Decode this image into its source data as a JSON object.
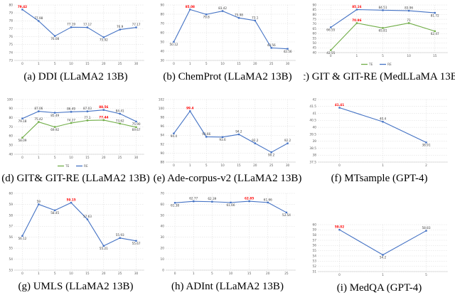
{
  "colors": {
    "line_blue": "#4472c4",
    "line_green": "#70ad47",
    "highlight_red": "#ff0000",
    "grid": "#d9d9d9",
    "axis": "#bfbfbf",
    "tick_text": "#595959",
    "label_text": "#3b3b3b"
  },
  "chart_data": [
    {
      "type": "line",
      "caption": "(a) DDI (LLaMA2 13B)",
      "x": [
        "0",
        "1",
        "5",
        "10",
        "15",
        "20",
        "25",
        "30"
      ],
      "ylim": [
        73,
        80
      ],
      "ystep": 1,
      "grid": true,
      "legend": null,
      "series": [
        {
          "color_key": "line_blue",
          "values": [
            79.42,
            77.98,
            76.08,
            77.19,
            77.17,
            75.92,
            76.9,
            77.17
          ],
          "labels": [
            "79.42",
            "77.98",
            "76.08",
            "77.19",
            "77.17",
            "75.92",
            "76.9",
            "77.17"
          ],
          "red_label_index": 0
        }
      ]
    },
    {
      "type": "line",
      "caption": "(b) ChemProt (LLaMA2 13B)",
      "x": [
        "0",
        "1",
        "5",
        "10",
        "15",
        "20",
        "25",
        "30"
      ],
      "ylim": [
        30,
        90
      ],
      "ystep": 10,
      "grid": true,
      "legend": null,
      "series": [
        {
          "color_key": "line_blue",
          "values": [
            50.12,
            85.08,
            79.8,
            83.42,
            75.98,
            73.1,
            43.56,
            42.56
          ],
          "labels": [
            "50.12",
            "85.08",
            "79.8",
            "83.42",
            "75.98",
            "73.1",
            "43.56",
            "42.56"
          ],
          "red_label_index": 1
        }
      ]
    },
    {
      "type": "line",
      "caption": "(c) GIT & GIT-RE (MedLLaMA 13B)",
      "x": [
        "0",
        "1",
        "5",
        "10",
        "15"
      ],
      "ylim": [
        40,
        90
      ],
      "ystep": 5,
      "grid": true,
      "legend": [
        {
          "label": "TE",
          "color_key": "line_green"
        },
        {
          "label": "RE",
          "color_key": "line_blue"
        }
      ],
      "series": [
        {
          "name": "TE",
          "color_key": "line_green",
          "values": [
            42.55,
            70.96,
            65.81,
            71.0,
            62.47
          ],
          "labels": [
            "42.55",
            "70.96",
            "65.81",
            "71",
            "62.47"
          ],
          "red_label_index": 1
        },
        {
          "name": "RE",
          "color_key": "line_blue",
          "values": [
            66.55,
            85.16,
            84.51,
            83.96,
            81.72
          ],
          "labels": [
            "66.55",
            "85.16",
            "84.51",
            "83.96",
            "81.72"
          ],
          "red_label_index": 1
        }
      ]
    },
    {
      "type": "line",
      "caption": "(d) GIT& GIT-RE (LLaMA2 13B)",
      "x": [
        "0",
        "1",
        "5",
        "10",
        "15",
        "20",
        "25",
        "30"
      ],
      "ylim": [
        40,
        100
      ],
      "ystep": 10,
      "grid": true,
      "legend": [
        {
          "label": "TE",
          "color_key": "line_green"
        },
        {
          "label": "RE",
          "color_key": "line_blue"
        }
      ],
      "series": [
        {
          "name": "TE",
          "color_key": "line_green",
          "values": [
            58.09,
            75.42,
            69.92,
            74.27,
            77.1,
            77.44,
            73.62,
            69.67
          ],
          "labels": [
            "58.09",
            "75.42",
            "69.92",
            "74.27",
            "77.1",
            "77.44",
            "73.62",
            "69.67"
          ],
          "red_label_index": 5
        },
        {
          "name": "RE",
          "color_key": "line_blue",
          "values": [
            79.18,
            87.06,
            85.49,
            86.49,
            87.03,
            88.56,
            84.41,
            75.9
          ],
          "labels": [
            "79.18",
            "87.06",
            "85.49",
            "86.49",
            "87.03",
            "88.56",
            "84.41",
            "75.90"
          ],
          "red_label_index": 5
        }
      ]
    },
    {
      "type": "line",
      "caption": "(e) Ade-corpus-v2 (LLaMA2 13B)",
      "x": [
        "0",
        "1",
        "5",
        "10",
        "15",
        "20",
        "25",
        "30"
      ],
      "ylim": [
        88,
        102
      ],
      "ystep": 2,
      "grid": true,
      "legend": null,
      "series": [
        {
          "color_key": "line_blue",
          "values": [
            94.4,
            99.4,
            93.66,
            93.6,
            94.2,
            92.2,
            90.2,
            92.2
          ],
          "labels": [
            "94.4",
            "99.4",
            "93.66",
            "93.6",
            "94.2",
            "92.2",
            "90.2",
            "92.2"
          ],
          "red_label_index": 1
        }
      ]
    },
    {
      "type": "line",
      "caption": "(f) MTsample (GPT-4)",
      "x": [
        "0",
        "1",
        "2"
      ],
      "ylim": [
        37.5,
        42
      ],
      "ystep": 0.5,
      "grid": true,
      "legend": null,
      "series": [
        {
          "color_key": "line_blue",
          "values": [
            41.41,
            40.4,
            38.91
          ],
          "labels": [
            "41.41",
            "40.4",
            "38.91"
          ],
          "red_label_index": 0
        }
      ]
    },
    {
      "type": "line",
      "caption": "(g) UMLS (LLaMA2 13B)",
      "x": [
        "0",
        "1",
        "5",
        "10",
        "15",
        "20",
        "25",
        "30"
      ],
      "ylim": [
        53,
        60
      ],
      "ystep": 1,
      "grid": true,
      "legend": null,
      "series": [
        {
          "color_key": "line_blue",
          "values": [
            56.12,
            59,
            58.45,
            59.15,
            57.63,
            55.21,
            55.93,
            55.67
          ],
          "labels": [
            "56.12",
            "59",
            "58.45",
            "59.15",
            "57.63",
            "55.21",
            "55.93",
            "55.67"
          ],
          "red_label_index": 3
        }
      ]
    },
    {
      "type": "line",
      "caption": "(h) ADInt (LLaMA2 13B)",
      "x": [
        "0",
        "1",
        "5",
        "10",
        "15",
        "20",
        "25"
      ],
      "ylim": [
        0,
        70
      ],
      "ystep": 10,
      "grid": true,
      "legend": null,
      "series": [
        {
          "color_key": "line_blue",
          "values": [
            61.38,
            62.77,
            62.39,
            61.66,
            62.85,
            61.66,
            52.54
          ],
          "labels": [
            "61.38",
            "62.77",
            "62.39",
            "61.66",
            "62.85",
            "61.66",
            "52.54"
          ],
          "red_label_index": 4
        }
      ]
    },
    {
      "type": "line",
      "caption": "(i) MedQA (GPT-4)",
      "x": [
        "0",
        "1",
        "5"
      ],
      "ylim": [
        51,
        60
      ],
      "ystep": 1,
      "grid": true,
      "legend": null,
      "series": [
        {
          "color_key": "line_blue",
          "values": [
            59.02,
            54.2,
            58.83
          ],
          "labels": [
            "59.02",
            "54.2",
            "58.83"
          ],
          "red_label_index": 0
        }
      ]
    }
  ]
}
